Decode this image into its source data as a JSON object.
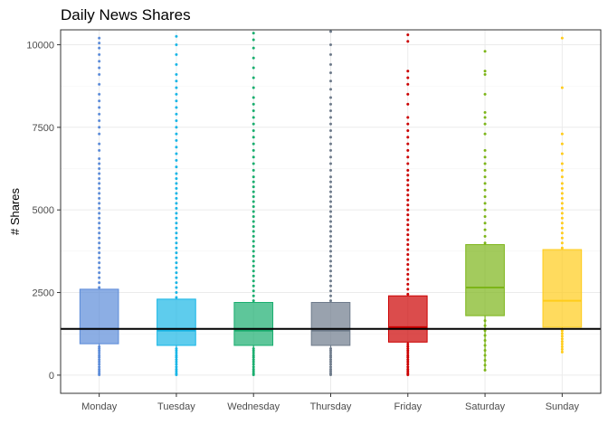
{
  "chart_data": {
    "type": "box",
    "title": "Daily News Shares",
    "xlabel": "",
    "ylabel": "# Shares",
    "ylim": [
      -550,
      10450
    ],
    "yticks": [
      0,
      2500,
      5000,
      7500,
      10000
    ],
    "ytick_labels": [
      "0",
      "2500",
      "5000",
      "7500",
      "10000"
    ],
    "reference_line": 1400,
    "grid": true,
    "categories": [
      "Monday",
      "Tuesday",
      "Wednesday",
      "Thursday",
      "Friday",
      "Saturday",
      "Sunday"
    ],
    "series": [
      {
        "category": "Monday",
        "q1": 950,
        "median": 1400,
        "q3": 2600,
        "whisker_low": 50,
        "color": "#5b8bd9",
        "points_low": [
          10,
          60,
          120,
          180,
          250,
          330,
          400,
          470,
          540,
          600,
          670,
          740,
          800,
          860
        ],
        "points_high": [
          2650,
          2800,
          2950,
          3100,
          3250,
          3400,
          3550,
          3700,
          3850,
          4000,
          4150,
          4300,
          4450,
          4600,
          4750,
          4900,
          5050,
          5200,
          5350,
          5500,
          5650,
          5800,
          5950,
          6100,
          6250,
          6400,
          6550,
          6800,
          7000,
          7300,
          7500,
          7700,
          7900,
          8100,
          8300,
          8500,
          8800,
          9100,
          9300,
          9500,
          9700,
          9900,
          10050,
          10200
        ]
      },
      {
        "category": "Tuesday",
        "q1": 900,
        "median": 1350,
        "q3": 2300,
        "whisker_low": 50,
        "color": "#19b6e6",
        "points_low": [
          10,
          60,
          120,
          180,
          250,
          330,
          400,
          470,
          540,
          600,
          670,
          740,
          800
        ],
        "points_high": [
          2350,
          2500,
          2650,
          2800,
          2950,
          3100,
          3250,
          3400,
          3550,
          3700,
          3850,
          4000,
          4150,
          4300,
          4450,
          4600,
          4750,
          4900,
          5050,
          5200,
          5350,
          5500,
          5650,
          5800,
          5950,
          6100,
          6300,
          6500,
          6700,
          6900,
          7100,
          7300,
          7500,
          7700,
          7900,
          8100,
          8300,
          8500,
          8700,
          8900,
          9100,
          9400,
          9700,
          10000,
          10250
        ]
      },
      {
        "category": "Wednesday",
        "q1": 900,
        "median": 1350,
        "q3": 2200,
        "whisker_low": 50,
        "color": "#1aae6f",
        "points_low": [
          10,
          60,
          120,
          180,
          250,
          330,
          400,
          470,
          540,
          600,
          670,
          740,
          800
        ],
        "points_high": [
          2250,
          2400,
          2550,
          2700,
          2850,
          3000,
          3150,
          3300,
          3450,
          3600,
          3750,
          3900,
          4050,
          4200,
          4350,
          4500,
          4650,
          4800,
          4950,
          5100,
          5250,
          5400,
          5550,
          5700,
          5850,
          6000,
          6200,
          6400,
          6600,
          6800,
          7000,
          7200,
          7400,
          7600,
          7800,
          8000,
          8200,
          8400,
          8700,
          9000,
          9300,
          9600,
          9900,
          10150,
          10350
        ]
      },
      {
        "category": "Thursday",
        "q1": 900,
        "median": 1350,
        "q3": 2200,
        "whisker_low": 50,
        "color": "#6e7b8b",
        "points_low": [
          10,
          60,
          120,
          180,
          250,
          330,
          400,
          470,
          540,
          600,
          670,
          740,
          800
        ],
        "points_high": [
          2250,
          2400,
          2550,
          2700,
          2850,
          3000,
          3150,
          3300,
          3450,
          3600,
          3750,
          3900,
          4050,
          4200,
          4350,
          4500,
          4650,
          4800,
          4950,
          5100,
          5250,
          5400,
          5550,
          5700,
          5850,
          6000,
          6200,
          6400,
          6600,
          6800,
          7000,
          7200,
          7400,
          7600,
          7800,
          8000,
          8200,
          8400,
          8650,
          8900,
          9150,
          9400,
          9700,
          10000,
          10400
        ]
      },
      {
        "category": "Friday",
        "q1": 1000,
        "median": 1450,
        "q3": 2400,
        "whisker_low": 50,
        "color": "#cc0000",
        "points_low": [
          10,
          60,
          120,
          180,
          250,
          330,
          400,
          470,
          540,
          600,
          670,
          740,
          800,
          870,
          940
        ],
        "points_high": [
          2450,
          2600,
          2750,
          2900,
          3050,
          3200,
          3350,
          3500,
          3650,
          3800,
          3950,
          4100,
          4250,
          4400,
          4550,
          4700,
          4850,
          5000,
          5150,
          5300,
          5450,
          5600,
          5750,
          5900,
          6050,
          6200,
          6400,
          6600,
          6800,
          7000,
          7200,
          7400,
          7600,
          7800,
          8200,
          8500,
          8800,
          9000,
          9200,
          10100,
          10300
        ]
      },
      {
        "category": "Saturday",
        "q1": 1800,
        "median": 2650,
        "q3": 3950,
        "whisker_low": 150,
        "color": "#7cb518",
        "points_low": [
          150,
          300,
          450,
          600,
          750,
          900,
          1050,
          1200,
          1350,
          1500,
          1650
        ],
        "points_high": [
          4000,
          4200,
          4400,
          4600,
          4800,
          5000,
          5200,
          5400,
          5600,
          5800,
          6000,
          6200,
          6400,
          6600,
          6800,
          7300,
          7600,
          7800,
          7950,
          8500,
          9100,
          9200,
          9800
        ]
      },
      {
        "category": "Sunday",
        "q1": 1450,
        "median": 2250,
        "q3": 3800,
        "whisker_low": 700,
        "color": "#ffcc1a",
        "points_low": [
          700,
          780,
          860,
          940,
          1020,
          1100,
          1180,
          1260,
          1340
        ],
        "points_high": [
          3850,
          4000,
          4150,
          4300,
          4450,
          4600,
          4750,
          4900,
          5050,
          5200,
          5350,
          5500,
          5650,
          5800,
          6000,
          6200,
          6400,
          6700,
          7000,
          7300,
          8700,
          10200
        ]
      }
    ]
  }
}
